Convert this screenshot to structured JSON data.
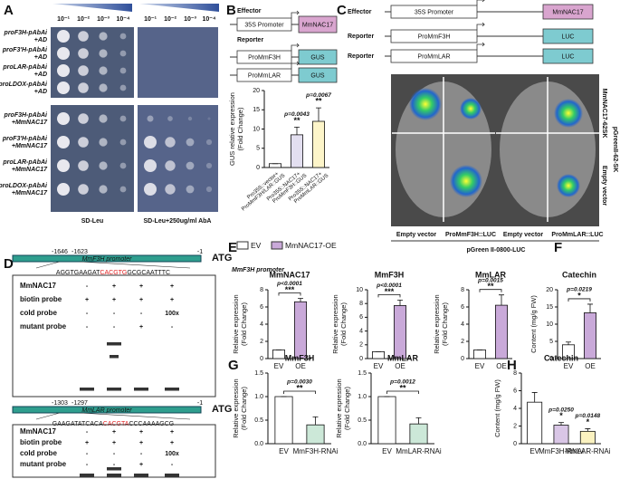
{
  "panels": [
    "A",
    "B",
    "C",
    "D",
    "E",
    "F",
    "G",
    "H"
  ],
  "panel_a": {
    "dilutions": [
      "10⁻¹",
      "10⁻²",
      "10⁻³",
      "10⁻⁴"
    ],
    "rows": [
      [
        "proF3H-pAbAi",
        "+AD"
      ],
      [
        "proF3'H-pAbAi",
        "+AD"
      ],
      [
        "proLAR-pAbAi",
        "+AD"
      ],
      [
        "proLDOX-pAbAi",
        "+AD"
      ],
      [
        "proF3H-pAbAi",
        "+MmNAC17"
      ],
      [
        "proF3'H-pAbAi",
        "+MmNAC17"
      ],
      [
        "proLAR-pAbAi",
        "+MmNAC17"
      ],
      [
        "proLDOX-pAbAi",
        "+MmNAC17"
      ]
    ],
    "media": [
      "SD-Leu",
      "SD-Leu+250ug/ml  AbA"
    ]
  },
  "panel_b": {
    "effector_label": "Effector",
    "reporter_label": "Reporter",
    "promoter": "35S Promoter",
    "gene": "MmNAC17",
    "reporters": [
      [
        "ProMmF3H",
        "GUS"
      ],
      [
        "ProMmLAR",
        "GUS"
      ]
    ]
  },
  "panel_c": {
    "effector_label": "Effector",
    "promoter": "35S Promoter",
    "gene": "MmNAC17",
    "reporters": [
      [
        "Reporter",
        "ProMmF3H",
        "LUC"
      ],
      [
        "Reporter",
        "ProMmLAR",
        "LUC"
      ]
    ],
    "leaf_labels": [
      "Empty vector",
      "ProMmF3H::LUC",
      "Empty vector",
      "ProMmLAR::LUC"
    ],
    "vector": "pGreen II-0800-LUC",
    "side_labels": [
      "MmNAC17-62SK",
      "Empty vector"
    ],
    "side_vector": "pGreenII-62-SK"
  },
  "panel_d": {
    "emsa": [
      {
        "positions": [
          "-1646",
          "-1623"
        ],
        "promoter": "MmF3H promoter",
        "end": "-1",
        "atg": "ATG",
        "sequence": [
          "AGGTGAAGAT",
          "CACGTG",
          "GCGCAATTTC"
        ],
        "rows": [
          {
            "label": "MmNAC17",
            "lanes": [
              "-",
              "+",
              "+",
              "+"
            ]
          },
          {
            "label": "biotin probe",
            "lanes": [
              "+",
              "+",
              "+",
              "+"
            ]
          },
          {
            "label": "cold probe",
            "lanes": [
              "-",
              "-",
              "-",
              "100x"
            ]
          },
          {
            "label": "mutant probe",
            "lanes": [
              "-",
              "-",
              "+",
              "-"
            ]
          }
        ]
      },
      {
        "positions": [
          "-1303",
          "-1297"
        ],
        "promoter": "MmLAR promoter",
        "end": "-1",
        "atg": "ATG",
        "sequence": [
          "GAAGATATCACA",
          "CACGTA",
          "CCCAAAAGCG"
        ],
        "rows": [
          {
            "label": "MmNAC17",
            "lanes": [
              "-",
              "+",
              "+",
              "+"
            ]
          },
          {
            "label": "biotin probe",
            "lanes": [
              "+",
              "+",
              "+",
              "+"
            ]
          },
          {
            "label": "cold probe",
            "lanes": [
              "-",
              "-",
              "-",
              "100x"
            ]
          },
          {
            "label": "mutant probe",
            "lanes": [
              "-",
              "-",
              "+",
              "-"
            ]
          }
        ]
      }
    ]
  },
  "panel_e": {
    "legend": [
      "EV",
      "MmNAC17-OE"
    ],
    "legend_colors": [
      "#ffffff",
      "#c9a9d9"
    ],
    "note": "MmF3H promoter"
  },
  "chart_data": [
    {
      "type": "bar",
      "ylabel": [
        "GUS relative expression",
        "(Fold Change)"
      ],
      "categories": [
        [
          "Pro35S::vector+",
          "ProMmF3H/LAR::GUS"
        ],
        [
          "Pro35S::NAC17+",
          "ProMmF3H::GUS"
        ],
        [
          "Pro35S::NAC17+",
          "ProMmLAR::GUS"
        ]
      ],
      "values": [
        1,
        8.5,
        12
      ],
      "errors": [
        0,
        2,
        3.5
      ],
      "colors": [
        "#ffffff",
        "#e3dff0",
        "#fdf5c9"
      ],
      "ylim": [
        0,
        20
      ],
      "yticks": [
        0,
        5,
        10,
        15,
        20
      ],
      "stars": [
        null,
        "**",
        "**"
      ],
      "p_labels": [
        null,
        "p=0.0043",
        "p=0.0067"
      ],
      "bracket": false
    },
    {
      "type": "bar",
      "title": "MmNAC17",
      "ylabel": [
        "Relative expression",
        "(Fold Change)"
      ],
      "categories": [
        "EV",
        "OE"
      ],
      "values": [
        1,
        6.6
      ],
      "errors": [
        0,
        0.4
      ],
      "colors": [
        "#ffffff",
        "#c9a9d9"
      ],
      "ylim": [
        0,
        8
      ],
      "yticks": [
        0,
        2,
        4,
        6,
        8
      ],
      "stars": [
        null,
        "***"
      ],
      "p_labels": [
        null,
        "p<0.0001"
      ],
      "bracket": true
    },
    {
      "type": "bar",
      "title": "MmF3H",
      "ylabel": [
        "Relative expression",
        "(Fold Change)"
      ],
      "categories": [
        "EV",
        "OE"
      ],
      "values": [
        1,
        7.7
      ],
      "errors": [
        0,
        0.8
      ],
      "colors": [
        "#ffffff",
        "#c9a9d9"
      ],
      "ylim": [
        0,
        10
      ],
      "yticks": [
        0,
        2,
        4,
        6,
        8,
        10
      ],
      "stars": [
        null,
        "***"
      ],
      "p_labels": [
        null,
        "p<0.0001"
      ],
      "bracket": true
    },
    {
      "type": "bar",
      "title": "MmLAR",
      "ylabel": [
        "Relative expression",
        "(Fold Change)"
      ],
      "categories": [
        "EV",
        "OE"
      ],
      "values": [
        1,
        6.2
      ],
      "errors": [
        0,
        1.2
      ],
      "colors": [
        "#ffffff",
        "#c9a9d9"
      ],
      "ylim": [
        0,
        8
      ],
      "yticks": [
        0,
        2,
        4,
        6,
        8
      ],
      "stars": [
        null,
        "**"
      ],
      "p_labels": [
        null,
        "p=0.0015"
      ],
      "bracket": true
    },
    {
      "type": "bar",
      "title": "Catechin",
      "ylabel": [
        "Content (mg/g FW)"
      ],
      "categories": [
        "EV",
        "OE"
      ],
      "values": [
        4,
        13.3
      ],
      "errors": [
        0.8,
        2.5
      ],
      "colors": [
        "#ffffff",
        "#c9a9d9"
      ],
      "ylim": [
        0,
        20
      ],
      "yticks": [
        0,
        5,
        10,
        15,
        20
      ],
      "stars": [
        null,
        "*"
      ],
      "p_labels": [
        null,
        "p=0.0219"
      ],
      "bracket": true
    },
    {
      "type": "bar",
      "title": "MmF3H",
      "ylabel": [
        "Relative expression",
        "(Fold Change)"
      ],
      "categories": [
        "EV",
        "MmF3H-RNAi"
      ],
      "values": [
        1,
        0.4
      ],
      "errors": [
        0,
        0.17
      ],
      "colors": [
        "#ffffff",
        "#cce8d8"
      ],
      "ylim": [
        0,
        1.5
      ],
      "yticks": [
        {
          "value": 0,
          "label": "0.0"
        },
        0.5,
        {
          "value": 1,
          "label": "1.0"
        },
        1.5
      ],
      "stars": [
        null,
        "**"
      ],
      "p_labels": [
        null,
        "p=0.0030"
      ],
      "bracket": true
    },
    {
      "type": "bar",
      "title": "MmLAR",
      "ylabel": [
        "Relative expression",
        "(Fold Change)"
      ],
      "categories": [
        "EV",
        "MmLAR-RNAi"
      ],
      "values": [
        1,
        0.42
      ],
      "errors": [
        0,
        0.13
      ],
      "colors": [
        "#ffffff",
        "#cce8d8"
      ],
      "ylim": [
        0,
        1.5
      ],
      "yticks": [
        {
          "value": 0,
          "label": "0.0"
        },
        0.5,
        {
          "value": 1,
          "label": "1.0"
        },
        1.5
      ],
      "stars": [
        null,
        "**"
      ],
      "p_labels": [
        null,
        "p=0.0012"
      ],
      "bracket": true
    },
    {
      "type": "bar",
      "title": "Catechin",
      "ylabel": [
        "Content (mg/g FW)"
      ],
      "categories": [
        "EV",
        "MmF3H-RNAi",
        "MmLAR-RNAi"
      ],
      "values": [
        4.7,
        2.1,
        1.4
      ],
      "errors": [
        1.1,
        0.3,
        0.3
      ],
      "colors": [
        "#ffffff",
        "#d9c6e6",
        "#fbf2c0"
      ],
      "ylim": [
        0,
        8
      ],
      "yticks": [
        0,
        2,
        4,
        6,
        8
      ],
      "stars": [
        null,
        "*",
        "*"
      ],
      "p_labels": [
        null,
        "p=0.0250",
        "p=0.0148"
      ],
      "bracket": false
    }
  ]
}
